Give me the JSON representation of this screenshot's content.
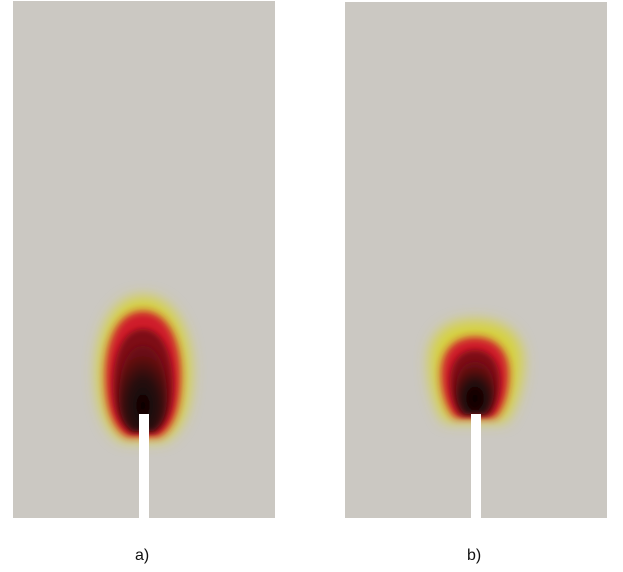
{
  "figure": {
    "panels": [
      {
        "id": "a",
        "caption": "a)"
      },
      {
        "id": "b",
        "caption": "b)"
      }
    ],
    "colors": {
      "background": "#cbc8c2",
      "outer_zone": "#d9d43a",
      "middle_zone": "#cf1e28",
      "inner_zone": "#8a0f16",
      "core": "#120606",
      "notch": "#ffffff"
    }
  }
}
